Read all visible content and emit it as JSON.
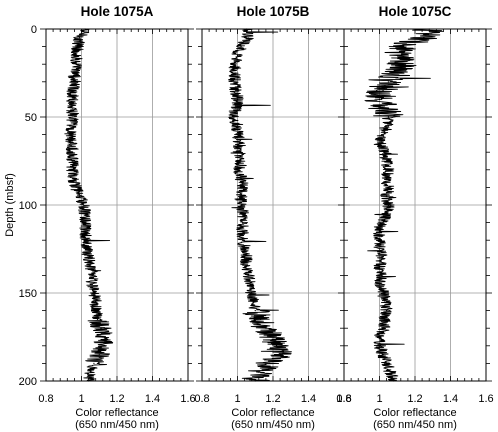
{
  "chart_data": [
    {
      "type": "line",
      "title": "Hole 1075A",
      "xlabel": [
        "Color reflectance",
        "(650 nm/450 nm)"
      ],
      "ylabel": "Depth (mbsf)",
      "xlim": [
        0.8,
        1.6
      ],
      "ylim": [
        0,
        200
      ],
      "y_inverted": true,
      "xticks": [
        "0.8",
        "1",
        "1.2",
        "1.4",
        "1.6"
      ],
      "yticks": [
        "0",
        "50",
        "100",
        "150",
        "200"
      ],
      "grid": true,
      "series": [
        {
          "y": [
            0,
            5,
            10,
            15,
            20,
            25,
            30,
            35,
            40,
            45,
            50,
            55,
            60,
            65,
            70,
            75,
            80,
            85,
            90,
            95,
            100,
            105,
            110,
            115,
            120,
            125,
            130,
            135,
            140,
            145,
            150,
            155,
            160,
            165,
            170,
            175,
            180,
            185,
            190,
            195,
            200
          ],
          "x": [
            1.02,
            0.99,
            0.98,
            0.97,
            0.97,
            0.96,
            0.96,
            0.95,
            0.95,
            0.95,
            0.95,
            0.94,
            0.94,
            0.94,
            0.95,
            0.95,
            0.95,
            0.95,
            0.97,
            0.99,
            1.01,
            1.02,
            1.02,
            1.02,
            1.02,
            1.03,
            1.04,
            1.05,
            1.06,
            1.06,
            1.07,
            1.08,
            1.08,
            1.09,
            1.11,
            1.12,
            1.13,
            1.1,
            1.07,
            1.05,
            1.04
          ]
        }
      ]
    },
    {
      "type": "line",
      "title": "Hole 1075B",
      "xlabel": [
        "Color reflectance",
        "(650 nm/450 nm)"
      ],
      "xlim": [
        0.8,
        1.6
      ],
      "ylim": [
        0,
        200
      ],
      "y_inverted": true,
      "xticks": [
        "0.8",
        "1",
        "1.2",
        "1.4",
        "1.6"
      ],
      "grid": true,
      "series": [
        {
          "y": [
            0,
            5,
            10,
            15,
            20,
            25,
            30,
            35,
            40,
            45,
            50,
            55,
            60,
            65,
            70,
            75,
            80,
            85,
            90,
            95,
            100,
            105,
            110,
            115,
            120,
            125,
            130,
            135,
            140,
            145,
            150,
            155,
            160,
            165,
            170,
            175,
            180,
            185,
            190,
            195,
            200
          ],
          "x": [
            1.05,
            1.06,
            1.02,
            1.0,
            0.98,
            0.99,
            0.98,
            0.99,
            1.0,
            0.99,
            0.98,
            1.0,
            1.0,
            1.01,
            1.01,
            1.02,
            1.01,
            1.02,
            1.03,
            1.02,
            1.02,
            1.03,
            1.03,
            1.03,
            1.03,
            1.04,
            1.05,
            1.05,
            1.06,
            1.07,
            1.08,
            1.09,
            1.1,
            1.13,
            1.16,
            1.2,
            1.22,
            1.24,
            1.18,
            1.12,
            1.1
          ]
        }
      ]
    },
    {
      "type": "line",
      "title": "Hole 1075C",
      "xlabel": [
        "Color reflectance",
        "(650 nm/450 nm)"
      ],
      "xlim": [
        0.8,
        1.6
      ],
      "ylim": [
        0,
        200
      ],
      "y_inverted": true,
      "xticks": [
        "0.8",
        "1",
        "1.2",
        "1.4",
        "1.6"
      ],
      "grid": true,
      "series": [
        {
          "y": [
            0,
            5,
            10,
            15,
            20,
            25,
            30,
            35,
            40,
            45,
            50,
            55,
            60,
            65,
            70,
            75,
            80,
            85,
            90,
            95,
            100,
            105,
            110,
            115,
            120,
            125,
            130,
            135,
            140,
            145,
            150,
            155,
            160,
            165,
            170,
            175,
            180,
            185,
            190,
            195,
            200
          ],
          "x": [
            1.28,
            1.25,
            1.12,
            1.1,
            1.12,
            1.1,
            1.05,
            1.02,
            1.0,
            1.02,
            1.05,
            1.05,
            1.02,
            1.0,
            1.03,
            1.04,
            1.05,
            1.04,
            1.05,
            1.04,
            1.05,
            1.04,
            1.02,
            1.0,
            1.0,
            1.0,
            1.01,
            1.0,
            1.01,
            1.0,
            1.02,
            1.03,
            1.04,
            1.03,
            1.03,
            1.0,
            1.0,
            1.02,
            1.04,
            1.06,
            1.08
          ]
        }
      ]
    }
  ]
}
